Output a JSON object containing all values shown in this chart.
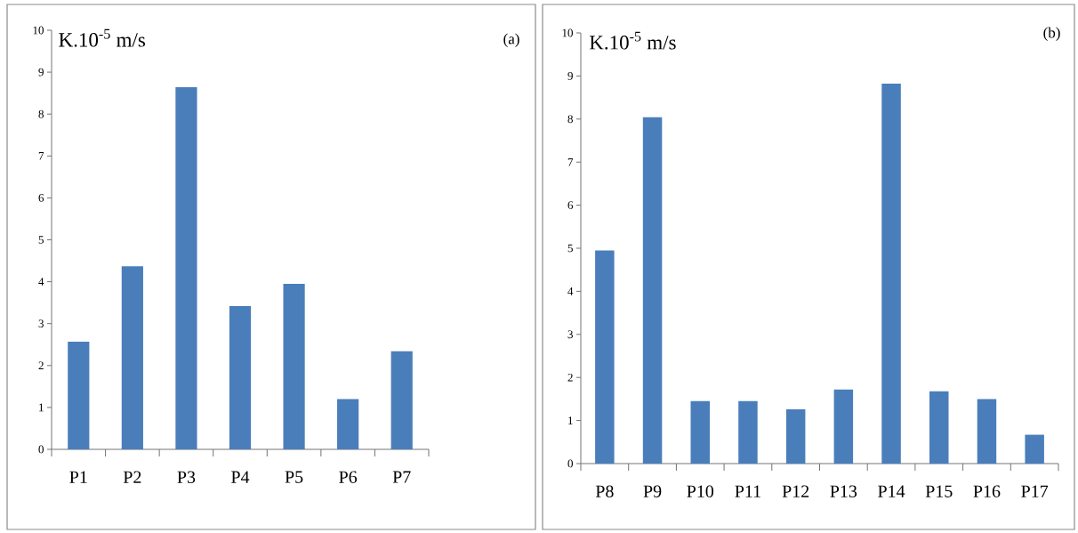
{
  "chart_data": [
    {
      "type": "bar",
      "ylabel": "K.10$^{-5}$ m/s",
      "annotations": [
        "(a)"
      ],
      "categories": [
        "P1",
        "P2",
        "P3",
        "P4",
        "P5",
        "P6",
        "P7"
      ],
      "values": [
        2.57,
        4.37,
        8.64,
        3.42,
        3.95,
        1.2,
        2.34
      ],
      "color": "#4a7ebb",
      "ylim": [
        0,
        10
      ],
      "yticks": [
        0,
        1,
        2,
        3,
        4,
        5,
        6,
        7,
        8,
        9,
        10
      ]
    },
    {
      "type": "bar",
      "ylabel": "K.10$^{-5}$ m/s",
      "annotations": [
        "(b)"
      ],
      "categories": [
        "P8",
        "P9",
        "P10",
        "P11",
        "P12",
        "P13",
        "P14",
        "P15",
        "P16",
        "P17"
      ],
      "values": [
        4.95,
        8.04,
        1.45,
        1.45,
        1.26,
        1.72,
        8.82,
        1.68,
        1.5,
        0.67
      ],
      "color": "#4a7ebb",
      "ylim": [
        0,
        10
      ],
      "yticks": [
        0,
        1,
        2,
        3,
        4,
        5,
        6,
        7,
        8,
        9,
        10
      ]
    }
  ]
}
